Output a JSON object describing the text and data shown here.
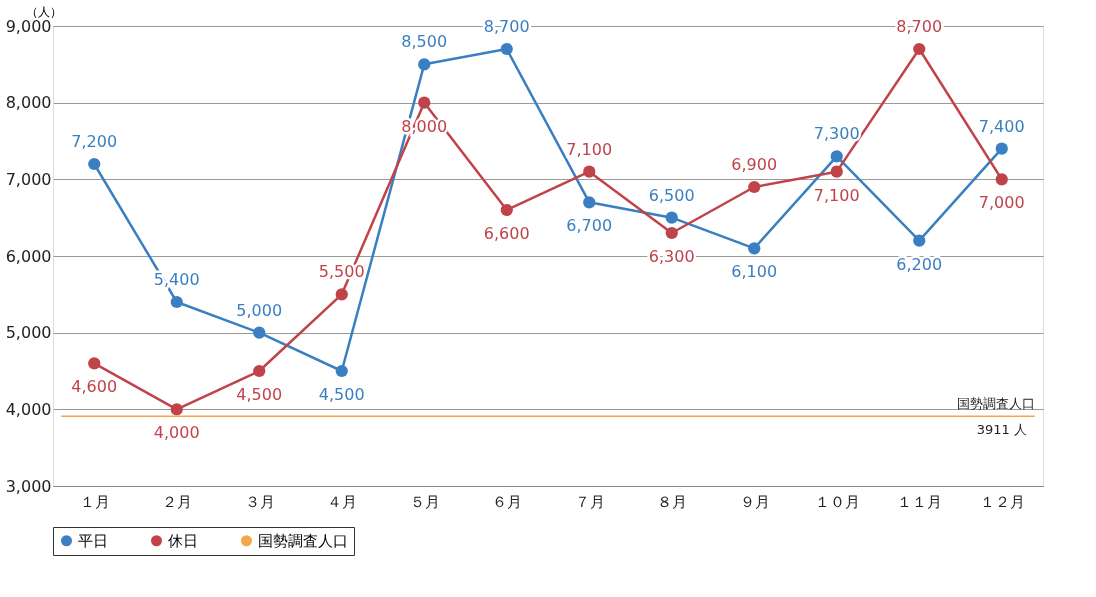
{
  "chart_data": {
    "type": "line",
    "ylabel": "（人）",
    "categories": [
      "１月",
      "２月",
      "３月",
      "４月",
      "５月",
      "６月",
      "７月",
      "８月",
      "９月",
      "１０月",
      "１１月",
      "１２月"
    ],
    "series": [
      {
        "name": "平日",
        "color": "#3a7fc1",
        "values": [
          7200,
          5400,
          5000,
          4500,
          8500,
          8700,
          6700,
          6500,
          6100,
          7300,
          6200,
          7400
        ],
        "value_labels": [
          "7,200",
          "5,400",
          "5,000",
          "4,500",
          "8,500",
          "8,700",
          "6,700",
          "6,500",
          "6,100",
          "7,300",
          "6,200",
          "7,400"
        ]
      },
      {
        "name": "休日",
        "color": "#c0434a",
        "values": [
          4600,
          4000,
          4500,
          5500,
          8000,
          6600,
          7100,
          6300,
          6900,
          7100,
          8700,
          7000
        ],
        "value_labels": [
          "4,600",
          "4,000",
          "4,500",
          "5,500",
          "8,000",
          "6,600",
          "7,100",
          "6,300",
          "6,900",
          "7,100",
          "8,700",
          "7,000"
        ]
      }
    ],
    "ylim": [
      3000,
      9000
    ],
    "yticks": [
      {
        "value": 3000,
        "label": "3,000"
      },
      {
        "value": 4000,
        "label": "4,000"
      },
      {
        "value": 5000,
        "label": "5,000"
      },
      {
        "value": 6000,
        "label": "6,000"
      },
      {
        "value": 7000,
        "label": "7,000"
      },
      {
        "value": 8000,
        "label": "8,000"
      },
      {
        "value": 9000,
        "label": "9,000"
      }
    ],
    "ref_lines": [
      {
        "axis": "y",
        "value": 3911,
        "label": "国勢調査人口",
        "color": "#f5a54a"
      }
    ],
    "annotations": [
      {
        "text": "3911 人",
        "x": "１２月",
        "y": 3911
      }
    ],
    "grid": "y",
    "legend": "bottom",
    "marker": "circle",
    "line_style": "solid"
  }
}
